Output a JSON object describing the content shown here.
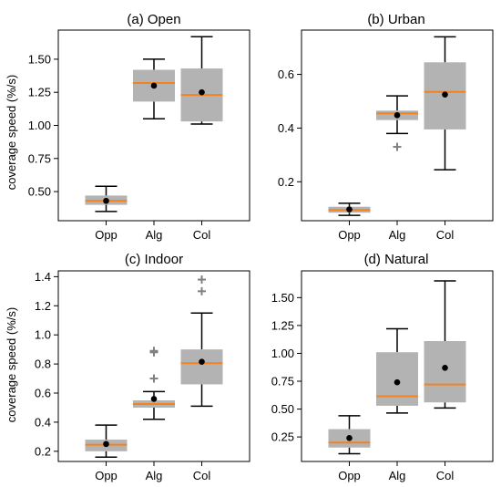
{
  "colors": {
    "box": "#b3b3b3",
    "median": "#f58220",
    "whisker": "#000000",
    "mean": "#000000",
    "outlier": "#808080"
  },
  "ylabel": "coverage speed (%/s)",
  "chart_data": [
    {
      "type": "box",
      "title": "(a) Open",
      "categories": [
        "Opp",
        "Alg",
        "Col"
      ],
      "ylim": [
        0.28,
        1.72
      ],
      "yticks": [
        0.5,
        0.75,
        1.0,
        1.25,
        1.5
      ],
      "ytick_labels": [
        "0.50",
        "0.75",
        "1.00",
        "1.25",
        "1.50"
      ],
      "boxes": [
        {
          "min": 0.35,
          "q1": 0.4,
          "median": 0.43,
          "q3": 0.47,
          "max": 0.54,
          "mean": 0.43,
          "outliers": []
        },
        {
          "min": 1.05,
          "q1": 1.18,
          "median": 1.32,
          "q3": 1.42,
          "max": 1.5,
          "mean": 1.3,
          "outliers": []
        },
        {
          "min": 1.01,
          "q1": 1.03,
          "median": 1.23,
          "q3": 1.43,
          "max": 1.67,
          "mean": 1.25,
          "outliers": []
        }
      ]
    },
    {
      "type": "box",
      "title": "(b) Urban",
      "categories": [
        "Opp",
        "Alg",
        "Col"
      ],
      "ylim": [
        0.055,
        0.765
      ],
      "yticks": [
        0.2,
        0.4,
        0.6
      ],
      "ytick_labels": [
        "0.2",
        "0.4",
        "0.6"
      ],
      "boxes": [
        {
          "min": 0.075,
          "q1": 0.085,
          "median": 0.095,
          "q3": 0.107,
          "max": 0.12,
          "mean": 0.097,
          "outliers": []
        },
        {
          "min": 0.38,
          "q1": 0.43,
          "median": 0.455,
          "q3": 0.465,
          "max": 0.52,
          "mean": 0.448,
          "outliers": [
            0.33
          ]
        },
        {
          "min": 0.245,
          "q1": 0.395,
          "median": 0.535,
          "q3": 0.645,
          "max": 0.74,
          "mean": 0.525,
          "outliers": []
        }
      ]
    },
    {
      "type": "box",
      "title": "(c) Indoor",
      "categories": [
        "Opp",
        "Alg",
        "Col"
      ],
      "ylim": [
        0.13,
        1.44
      ],
      "yticks": [
        0.2,
        0.4,
        0.6,
        0.8,
        1.0,
        1.2,
        1.4
      ],
      "ytick_labels": [
        "0.2",
        "0.4",
        "0.6",
        "0.8",
        "1.0",
        "1.2",
        "1.4"
      ],
      "boxes": [
        {
          "min": 0.16,
          "q1": 0.2,
          "median": 0.245,
          "q3": 0.28,
          "max": 0.38,
          "mean": 0.25,
          "outliers": []
        },
        {
          "min": 0.42,
          "q1": 0.5,
          "median": 0.525,
          "q3": 0.55,
          "max": 0.61,
          "mean": 0.56,
          "outliers": [
            0.7,
            0.88,
            0.89
          ]
        },
        {
          "min": 0.51,
          "q1": 0.66,
          "median": 0.805,
          "q3": 0.9,
          "max": 1.15,
          "mean": 0.815,
          "outliers": [
            1.3,
            1.38
          ]
        }
      ]
    },
    {
      "type": "box",
      "title": "(d) Natural",
      "categories": [
        "Opp",
        "Alg",
        "Col"
      ],
      "ylim": [
        0.03,
        1.74
      ],
      "yticks": [
        0.25,
        0.5,
        0.75,
        1.0,
        1.25,
        1.5
      ],
      "ytick_labels": [
        "0.25",
        "0.50",
        "0.75",
        "1.00",
        "1.25",
        "1.50"
      ],
      "boxes": [
        {
          "min": 0.1,
          "q1": 0.155,
          "median": 0.2,
          "q3": 0.32,
          "max": 0.44,
          "mean": 0.24,
          "outliers": []
        },
        {
          "min": 0.465,
          "q1": 0.53,
          "median": 0.615,
          "q3": 1.01,
          "max": 1.22,
          "mean": 0.74,
          "outliers": []
        },
        {
          "min": 0.51,
          "q1": 0.56,
          "median": 0.72,
          "q3": 1.11,
          "max": 1.65,
          "mean": 0.87,
          "outliers": []
        }
      ]
    }
  ]
}
